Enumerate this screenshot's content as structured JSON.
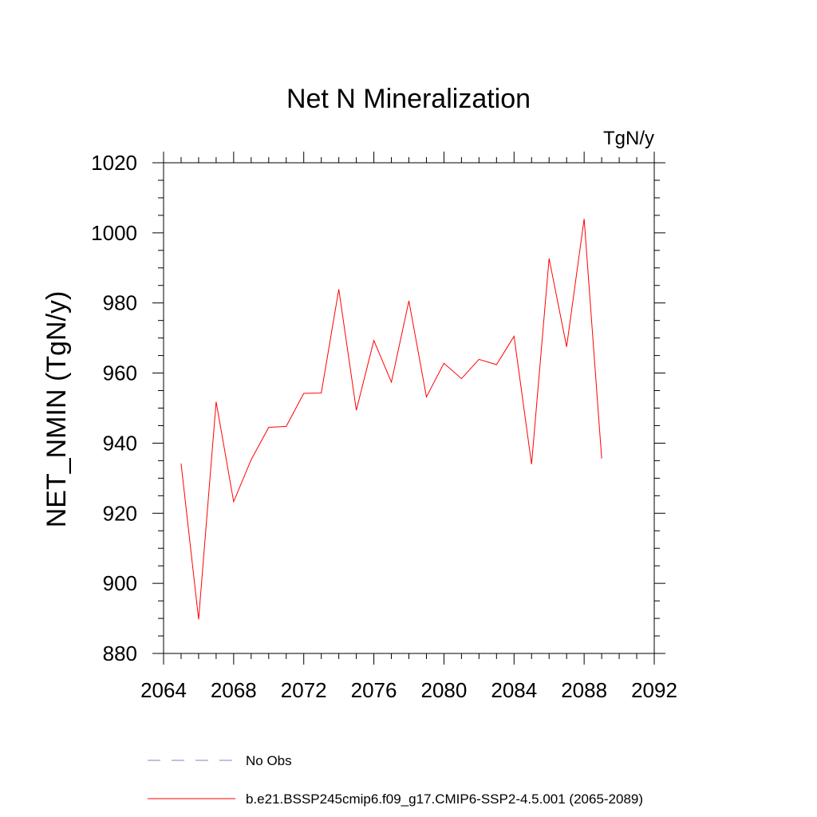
{
  "chart_data": {
    "type": "line",
    "title": "Net N Mineralization",
    "units_label": "TgN/y",
    "ylabel": "NET_NMIN  (TgN/y)",
    "xlabel": "",
    "xlim": [
      2064,
      2092
    ],
    "ylim": [
      880,
      1020
    ],
    "x_ticks": [
      2064,
      2068,
      2072,
      2076,
      2080,
      2084,
      2088,
      2092
    ],
    "y_ticks": [
      880,
      900,
      920,
      940,
      960,
      980,
      1000,
      1020
    ],
    "grid": false,
    "x": [
      2065,
      2066,
      2067,
      2068,
      2069,
      2070,
      2071,
      2072,
      2073,
      2074,
      2075,
      2076,
      2077,
      2078,
      2079,
      2080,
      2081,
      2082,
      2083,
      2084,
      2085,
      2086,
      2087,
      2088,
      2089
    ],
    "series": [
      {
        "name": "b.e21.BSSP245cmip6.f09_g17.CMIP6-SSP2-4.5.001 (2065-2089)",
        "color": "#ff0000",
        "style": "solid",
        "values": [
          934.2,
          889.7,
          951.8,
          923.3,
          935.3,
          944.5,
          944.8,
          954.2,
          954.3,
          983.9,
          949.4,
          969.3,
          957.4,
          980.6,
          953.2,
          962.8,
          958.4,
          963.9,
          962.4,
          970.5,
          934.0,
          992.7,
          967.5,
          1004.0,
          935.6
        ]
      }
    ],
    "legend": {
      "placement": "bottom",
      "entries": [
        {
          "label": "No Obs",
          "color": "#8080c0",
          "style": "dashed"
        },
        {
          "label": "b.e21.BSSP245cmip6.f09_g17.CMIP6-SSP2-4.5.001 (2065-2089)",
          "color": "#ff0000",
          "style": "solid"
        }
      ]
    }
  }
}
